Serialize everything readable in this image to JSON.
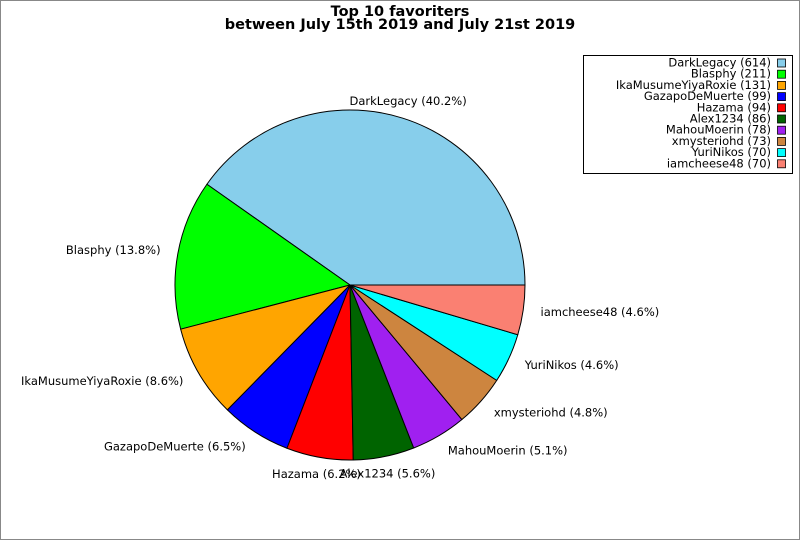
{
  "chart_data": {
    "type": "pie",
    "title": "Top 10 favoriters",
    "subtitle": "between July 15th 2019 and July 21st 2019",
    "values": [
      614,
      211,
      131,
      99,
      94,
      86,
      78,
      73,
      70,
      70
    ],
    "slice_labels": [
      "DarkLegacy (40.2%)",
      "Blasphy (13.8%)",
      "IkaMusumeYiyaRoxie (8.6%)",
      "GazapoDeMuerte (6.5%)",
      "Hazama (6.2%)",
      "Alex1234 (5.6%)",
      "MahouMoerin (5.1%)",
      "xmysteriohd (4.8%)",
      "YuriNikos (4.6%)",
      "iamcheese48 (4.6%)"
    ],
    "legend_labels": [
      "DarkLegacy (614)",
      "Blasphy (211)",
      "IkaMusumeYiyaRoxie (131)",
      "GazapoDeMuerte (99)",
      "Hazama (94)",
      "Alex1234 (86)",
      "MahouMoerin (78)",
      "xmysteriohd (73)",
      "YuriNikos (70)",
      "iamcheese48 (70)"
    ],
    "colors": [
      "#87ceeb",
      "#00ff00",
      "#ffa500",
      "#0000ff",
      "#ff0000",
      "#006400",
      "#a020f0",
      "#cd853f",
      "#00ffff",
      "#fa8072"
    ],
    "legend": "upper right"
  }
}
